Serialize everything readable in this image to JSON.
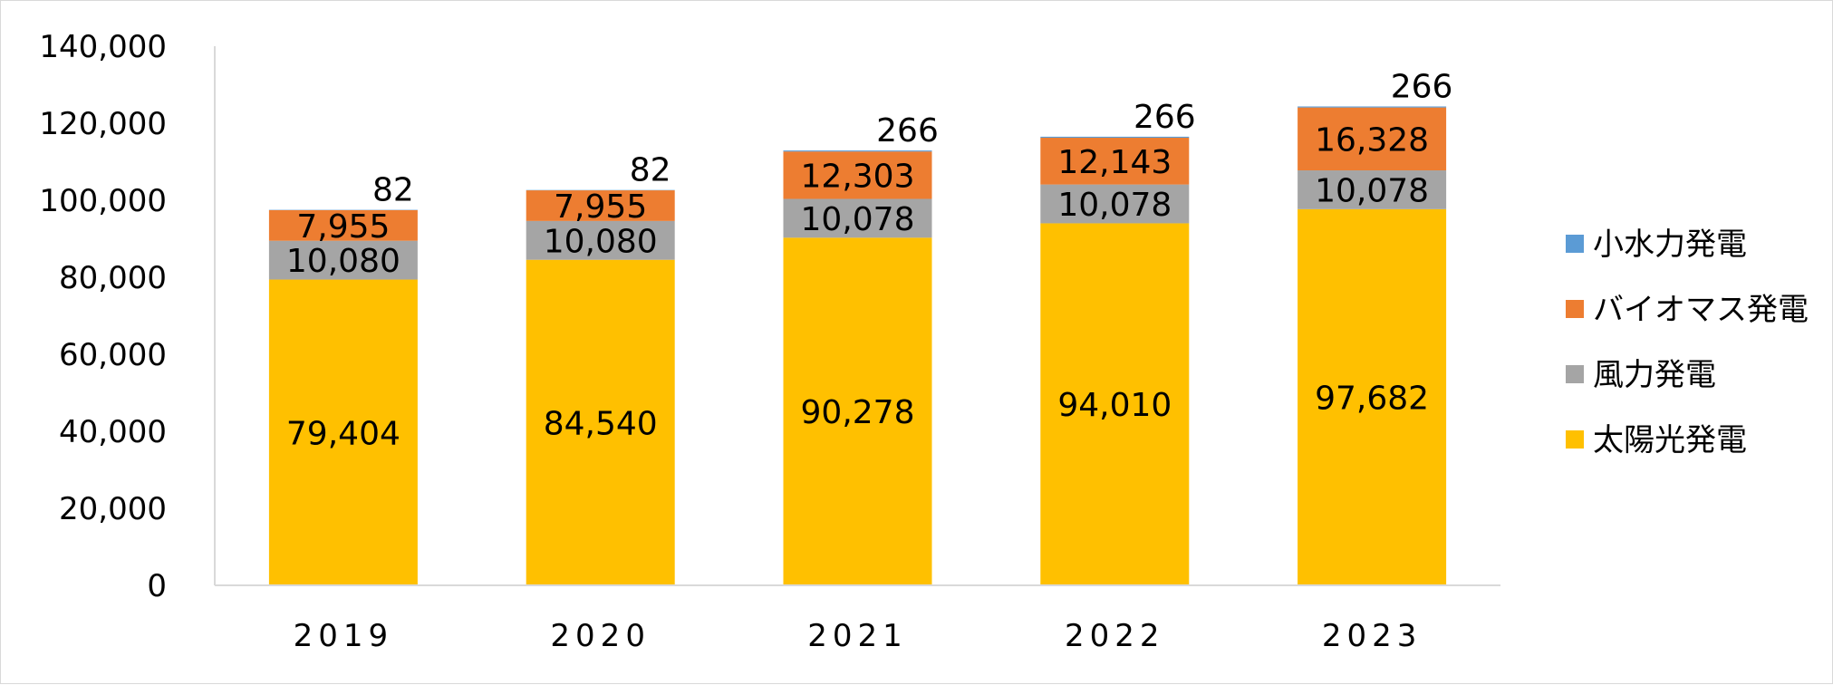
{
  "chart_data": {
    "type": "bar",
    "stacked": true,
    "title": "",
    "xlabel": "",
    "ylabel": "",
    "ylim": [
      0,
      140000
    ],
    "yticks": [
      0,
      20000,
      40000,
      60000,
      80000,
      100000,
      120000,
      140000
    ],
    "ytick_labels": [
      "0",
      "20,000",
      "40,000",
      "60,000",
      "80,000",
      "100,000",
      "120,000",
      "140,000"
    ],
    "grid": false,
    "legend_position": "right",
    "categories": [
      "2019",
      "2020",
      "2021",
      "2022",
      "2023"
    ],
    "series": [
      {
        "name": "太陽光発電",
        "color": "#FFC000",
        "values": [
          79404,
          84540,
          90278,
          94010,
          97682
        ],
        "labels": [
          "79,404",
          "84,540",
          "90,278",
          "94,010",
          "97,682"
        ]
      },
      {
        "name": "風力発電",
        "color": "#A5A5A5",
        "values": [
          10080,
          10080,
          10078,
          10078,
          10078
        ],
        "labels": [
          "10,080",
          "10,080",
          "10,078",
          "10,078",
          "10,078"
        ]
      },
      {
        "name": "バイオマス発電",
        "color": "#ED7D31",
        "values": [
          7955,
          7955,
          12303,
          12143,
          16328
        ],
        "labels": [
          "7,955",
          "7,955",
          "12,303",
          "12,143",
          "16,328"
        ]
      },
      {
        "name": "小水力発電",
        "color": "#5B9BD5",
        "values": [
          82,
          82,
          266,
          266,
          266
        ],
        "labels": [
          "82",
          "82",
          "266",
          "266",
          "266"
        ]
      }
    ]
  }
}
